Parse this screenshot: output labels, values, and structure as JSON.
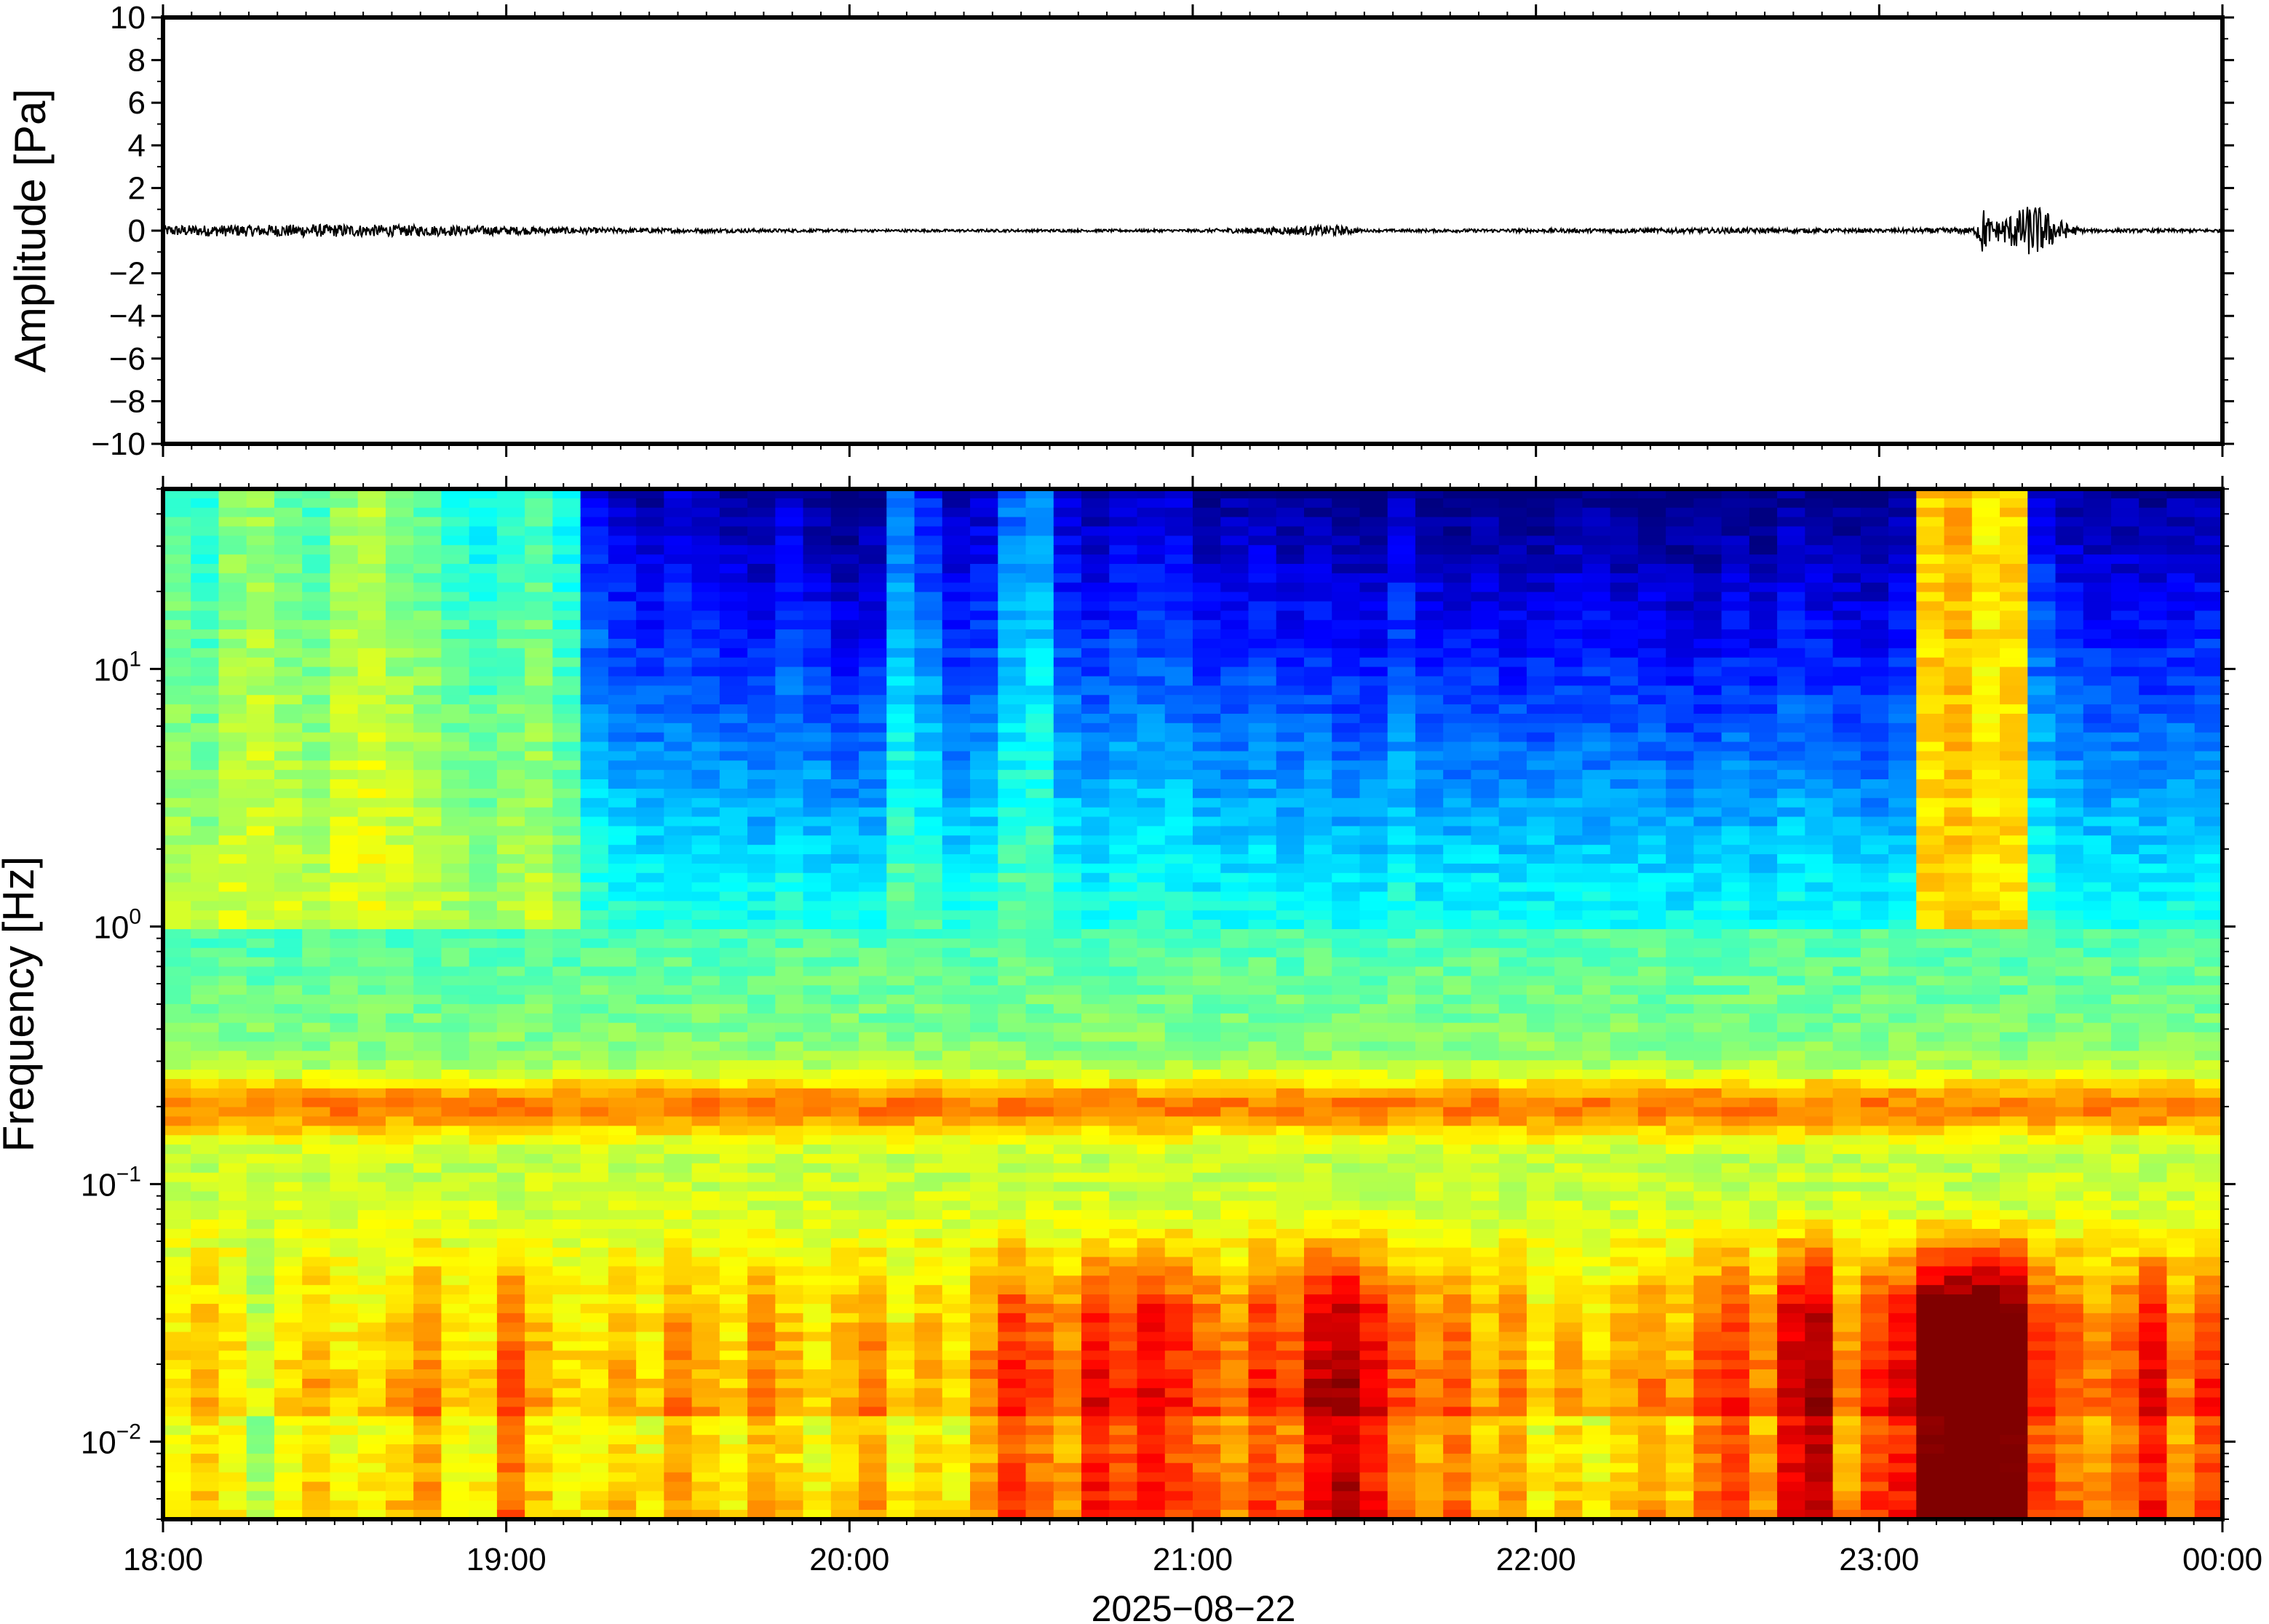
{
  "chart_data": [
    {
      "type": "line",
      "panel": "waveform",
      "ylabel": "Amplitude [Pa]",
      "ylim": [
        -10,
        10
      ],
      "yticks": [
        10,
        8,
        6,
        4,
        2,
        0,
        -2,
        -4,
        -6,
        -8,
        -10
      ],
      "ytick_labels": [
        "10",
        "8",
        "6",
        "4",
        "2",
        "0",
        "−2",
        "−4",
        "−6",
        "−8",
        "−10"
      ],
      "xlim_hours": [
        18,
        24
      ],
      "series": [
        {
          "color": "#000000",
          "envelope": [
            {
              "t": 18.0,
              "a": 0.25
            },
            {
              "t": 18.5,
              "a": 0.3
            },
            {
              "t": 19.0,
              "a": 0.2
            },
            {
              "t": 19.3,
              "a": 0.12
            },
            {
              "t": 20.0,
              "a": 0.06
            },
            {
              "t": 21.0,
              "a": 0.06
            },
            {
              "t": 21.42,
              "a": 0.25
            },
            {
              "t": 21.5,
              "a": 0.06
            },
            {
              "t": 22.6,
              "a": 0.12
            },
            {
              "t": 23.0,
              "a": 0.08
            },
            {
              "t": 23.28,
              "a": 0.15
            },
            {
              "t": 23.3,
              "a": 1.2
            },
            {
              "t": 23.33,
              "a": 0.4
            },
            {
              "t": 23.45,
              "a": 1.3
            },
            {
              "t": 23.55,
              "a": 0.3
            },
            {
              "t": 23.6,
              "a": 0.08
            },
            {
              "t": 24.0,
              "a": 0.08
            }
          ]
        }
      ]
    },
    {
      "type": "heatmap",
      "panel": "spectrogram",
      "ylabel": "Frequency [Hz]",
      "yscale": "log",
      "ylim": [
        0.005,
        50
      ],
      "ytick_labels": [
        {
          "base": "10",
          "exp": "1",
          "value": 10
        },
        {
          "base": "10",
          "exp": "0",
          "value": 1
        },
        {
          "base": "10",
          "exp": "−1",
          "value": 0.1
        },
        {
          "base": "10",
          "exp": "−2",
          "value": 0.01
        }
      ],
      "colormap": "jet",
      "xlim_hours": [
        18,
        24
      ],
      "xtick_labels": [
        "18:00",
        "19:00",
        "20:00",
        "21:00",
        "22:00",
        "23:00",
        "00:00"
      ],
      "xlabel": "2025−08−22",
      "column_power": [
        0.55,
        0.52,
        0.58,
        0.6,
        0.57,
        0.55,
        0.6,
        0.62,
        0.58,
        0.56,
        0.52,
        0.5,
        0.53,
        0.55,
        0.5,
        0.33,
        0.3,
        0.28,
        0.3,
        0.28,
        0.27,
        0.26,
        0.3,
        0.27,
        0.24,
        0.26,
        0.4,
        0.35,
        0.28,
        0.3,
        0.4,
        0.42,
        0.3,
        0.28,
        0.3,
        0.3,
        0.3,
        0.27,
        0.27,
        0.28,
        0.26,
        0.27,
        0.25,
        0.25,
        0.3,
        0.26,
        0.25,
        0.26,
        0.25,
        0.25,
        0.26,
        0.26,
        0.25,
        0.25,
        0.24,
        0.24,
        0.26,
        0.24,
        0.27,
        0.26,
        0.25,
        0.24,
        0.27,
        0.7,
        0.72,
        0.68,
        0.7,
        0.32,
        0.28,
        0.27,
        0.27,
        0.26,
        0.27,
        0.28
      ],
      "lowfreq_boost": [
        0.0,
        0.05,
        0.0,
        -0.1,
        0.0,
        0.05,
        0.0,
        0.0,
        0.05,
        0.1,
        0.0,
        0.0,
        0.15,
        0.05,
        0.0,
        0.0,
        0.05,
        0.0,
        0.1,
        0.05,
        0.0,
        0.1,
        0.05,
        0.0,
        0.05,
        0.1,
        0.0,
        0.05,
        0.0,
        0.1,
        0.2,
        0.15,
        0.1,
        0.25,
        0.2,
        0.25,
        0.2,
        0.15,
        0.1,
        0.2,
        0.15,
        0.3,
        0.35,
        0.25,
        0.15,
        0.1,
        0.15,
        0.05,
        0.1,
        0.0,
        0.05,
        0.0,
        0.05,
        0.1,
        0.05,
        0.15,
        0.2,
        0.1,
        0.3,
        0.35,
        0.1,
        0.2,
        0.25,
        0.45,
        0.5,
        0.5,
        0.45,
        0.2,
        0.15,
        0.1,
        0.15,
        0.25,
        0.1,
        0.2
      ]
    }
  ]
}
